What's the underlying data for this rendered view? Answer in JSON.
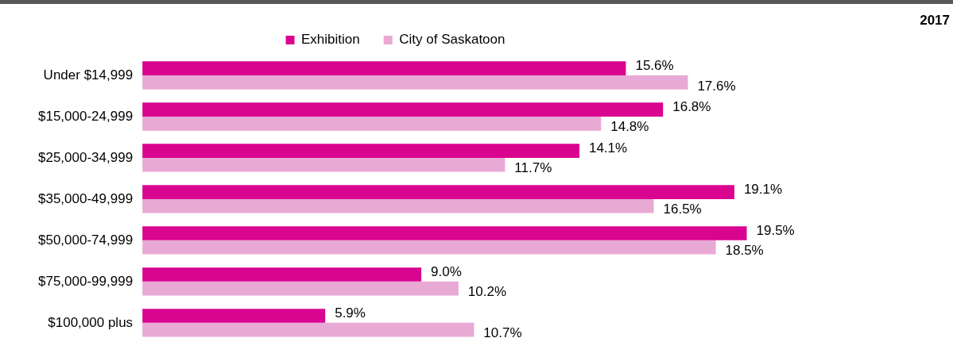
{
  "chart_data": {
    "type": "bar",
    "orientation": "horizontal",
    "title": "2017",
    "categories": [
      "Under $14,999",
      "$15,000-24,999",
      "$25,000-34,999",
      "$35,000-49,999",
      "$50,000-74,999",
      "$75,000-99,999",
      "$100,000 plus"
    ],
    "series": [
      {
        "name": "Exhibition",
        "color": "#d9048f",
        "values": [
          15.6,
          16.8,
          14.1,
          19.1,
          19.5,
          9.0,
          5.9
        ],
        "value_labels": [
          "15.6%",
          "16.8%",
          "14.1%",
          "19.1%",
          "19.5%",
          "9.0%",
          "5.9%"
        ]
      },
      {
        "name": "City of Saskatoon",
        "color": "#e8a9d4",
        "values": [
          17.6,
          14.8,
          11.7,
          16.5,
          18.5,
          10.2,
          10.7
        ],
        "value_labels": [
          "17.6%",
          "14.8%",
          "11.7%",
          "16.5%",
          "18.5%",
          "10.2%",
          "10.7%"
        ]
      }
    ],
    "tick_labels": "y",
    "legend": "top",
    "grid": false
  }
}
